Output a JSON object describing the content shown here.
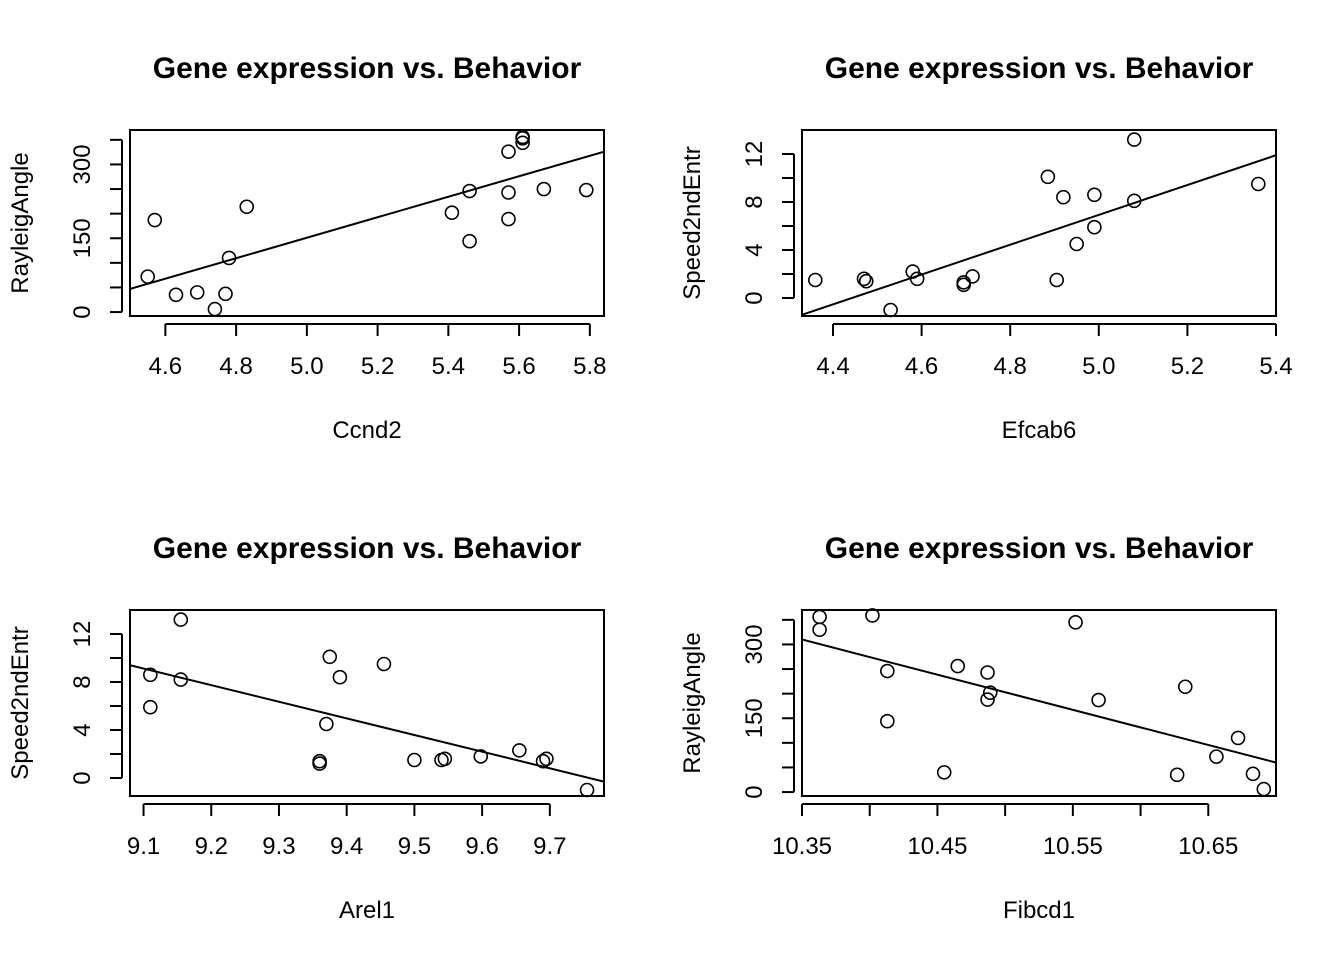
{
  "chart_data": [
    {
      "type": "scatter",
      "title": "Gene expression vs. Behavior",
      "xlabel": "Ccnd2",
      "ylabel": "RayleigAngle",
      "xlim": [
        4.5,
        5.84
      ],
      "ylim": [
        -8,
        370
      ],
      "xticks": [
        4.6,
        4.8,
        5.0,
        5.2,
        5.4,
        5.6,
        5.8
      ],
      "xtick_labels": [
        "4.6",
        "4.8",
        "5.0",
        "5.2",
        "5.4",
        "5.6",
        "5.8"
      ],
      "yticks": [
        0,
        50,
        100,
        150,
        200,
        250,
        300,
        350
      ],
      "ytick_labels": [
        "0",
        "",
        "",
        "150",
        "",
        "",
        "300",
        ""
      ],
      "x": [
        4.55,
        4.57,
        4.63,
        4.69,
        4.74,
        4.77,
        4.78,
        4.83,
        5.41,
        5.46,
        5.46,
        5.57,
        5.57,
        5.57,
        5.61,
        5.61,
        5.61,
        5.67,
        5.79
      ],
      "y": [
        72,
        187,
        35,
        40,
        6,
        37,
        110,
        214,
        202,
        246,
        144,
        189,
        243,
        326,
        356,
        353,
        344,
        250,
        248
      ],
      "fit_line": {
        "x": [
          4.5,
          5.84
        ],
        "y": [
          47,
          326
        ]
      }
    },
    {
      "type": "scatter",
      "title": "Gene expression vs. Behavior",
      "xlabel": "Efcab6",
      "ylabel": "Speed2ndEntr",
      "xlim": [
        4.33,
        5.4
      ],
      "ylim": [
        -1.5,
        14
      ],
      "xticks": [
        4.4,
        4.6,
        4.8,
        5.0,
        5.2,
        5.4
      ],
      "xtick_labels": [
        "4.4",
        "4.6",
        "4.8",
        "5.0",
        "5.2",
        "5.4"
      ],
      "yticks": [
        0,
        2,
        4,
        6,
        8,
        10,
        12
      ],
      "ytick_labels": [
        "0",
        "",
        "4",
        "",
        "8",
        "",
        "12"
      ],
      "x": [
        4.36,
        4.47,
        4.475,
        4.53,
        4.58,
        4.59,
        4.695,
        4.695,
        4.715,
        4.885,
        4.905,
        4.92,
        4.95,
        4.99,
        4.99,
        5.08,
        5.08,
        5.36
      ],
      "y": [
        1.5,
        1.6,
        1.4,
        -1.0,
        2.2,
        1.6,
        1.3,
        1.1,
        1.8,
        10.1,
        1.5,
        8.4,
        4.5,
        8.6,
        5.9,
        13.2,
        8.1,
        9.5
      ],
      "fit_line": {
        "x": [
          4.33,
          5.4
        ],
        "y": [
          -1.4,
          11.9
        ]
      }
    },
    {
      "type": "scatter",
      "title": "Gene expression vs. Behavior",
      "xlabel": "Arel1",
      "ylabel": "Speed2ndEntr",
      "xlim": [
        9.08,
        9.78
      ],
      "ylim": [
        -1.5,
        14
      ],
      "xticks": [
        9.1,
        9.2,
        9.3,
        9.4,
        9.5,
        9.6,
        9.7
      ],
      "xtick_labels": [
        "9.1",
        "9.2",
        "9.3",
        "9.4",
        "9.5",
        "9.6",
        "9.7"
      ],
      "yticks": [
        0,
        2,
        4,
        6,
        8,
        10,
        12
      ],
      "ytick_labels": [
        "0",
        "",
        "4",
        "",
        "8",
        "",
        "12"
      ],
      "x": [
        9.11,
        9.11,
        9.155,
        9.155,
        9.36,
        9.36,
        9.37,
        9.375,
        9.39,
        9.455,
        9.5,
        9.54,
        9.545,
        9.598,
        9.655,
        9.69,
        9.695,
        9.755
      ],
      "y": [
        8.6,
        5.9,
        13.2,
        8.2,
        1.4,
        1.2,
        4.5,
        10.1,
        8.4,
        9.5,
        1.5,
        1.5,
        1.6,
        1.8,
        2.3,
        1.4,
        1.6,
        -1.0
      ],
      "fit_line": {
        "x": [
          9.08,
          9.78
        ],
        "y": [
          9.4,
          -0.3
        ]
      }
    },
    {
      "type": "scatter",
      "title": "Gene expression vs. Behavior",
      "xlabel": "Fibcd1",
      "ylabel": "RayleigAngle",
      "xlim": [
        10.35,
        10.7
      ],
      "ylim": [
        -8,
        370
      ],
      "xticks": [
        10.35,
        10.4,
        10.45,
        10.5,
        10.55,
        10.6,
        10.65
      ],
      "xtick_labels": [
        "10.35",
        "",
        "10.45",
        "",
        "10.55",
        "",
        "10.65"
      ],
      "yticks": [
        0,
        50,
        100,
        150,
        200,
        250,
        300,
        350
      ],
      "ytick_labels": [
        "0",
        "",
        "",
        "150",
        "",
        "",
        "300",
        ""
      ],
      "x": [
        10.363,
        10.363,
        10.402,
        10.413,
        10.413,
        10.455,
        10.465,
        10.487,
        10.487,
        10.489,
        10.552,
        10.569,
        10.627,
        10.633,
        10.656,
        10.672,
        10.683,
        10.691
      ],
      "y": [
        356,
        330,
        359,
        246,
        144,
        40,
        256,
        243,
        188,
        202,
        345,
        187,
        35,
        214,
        72,
        110,
        37,
        6
      ],
      "fit_line": {
        "x": [
          10.35,
          10.7
        ],
        "y": [
          310,
          60
        ]
      }
    }
  ]
}
